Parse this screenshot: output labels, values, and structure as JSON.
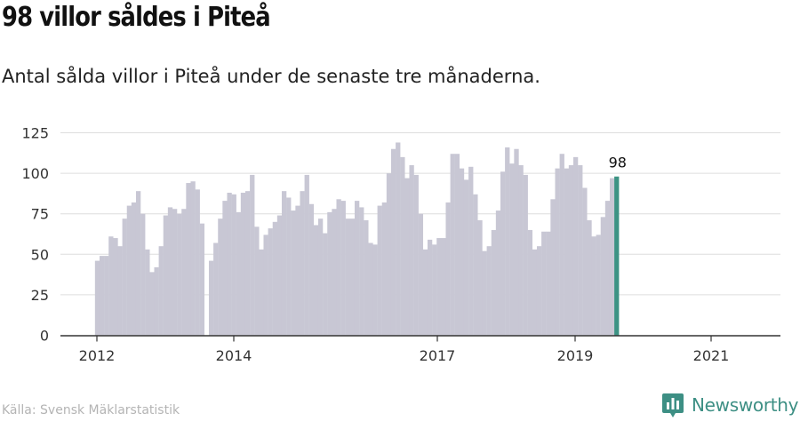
{
  "title": "98 villor såldes i Piteå",
  "subtitle": "Antal sålda villor i Piteå under de senaste tre månaderna.",
  "source": "Källa: Svensk Mäklarstatistik",
  "brand": "Newsworthy",
  "colors": {
    "bar": "#c8c7d4",
    "highlight": "#3d9384",
    "grid": "#dddddd",
    "axis": "#333333",
    "brand": "#3d8f84"
  },
  "icons": {
    "logo": "newsworthy-chart-icon"
  },
  "chart_data": {
    "type": "bar",
    "title": "98 villor såldes i Piteå",
    "xlabel": "",
    "ylabel": "",
    "ylim": [
      0,
      130
    ],
    "yticks": [
      0,
      25,
      50,
      75,
      100,
      125
    ],
    "xticks": [
      "2012",
      "2014",
      "2017",
      "2019",
      "2021"
    ],
    "grid": true,
    "highlight_label": "98",
    "values": [
      46,
      49,
      49,
      61,
      60,
      55,
      72,
      80,
      82,
      89,
      75,
      53,
      39,
      42,
      55,
      74,
      79,
      78,
      75,
      78,
      94,
      95,
      90,
      69,
      null,
      46,
      57,
      72,
      83,
      88,
      87,
      76,
      88,
      89,
      99,
      67,
      53,
      62,
      66,
      70,
      74,
      89,
      85,
      77,
      80,
      89,
      99,
      81,
      68,
      72,
      63,
      76,
      78,
      84,
      83,
      72,
      72,
      83,
      79,
      71,
      57,
      56,
      80,
      82,
      100,
      115,
      119,
      110,
      97,
      105,
      99,
      75,
      53,
      59,
      56,
      60,
      60,
      82,
      112,
      112,
      103,
      96,
      104,
      87,
      71,
      52,
      55,
      65,
      77,
      101,
      116,
      106,
      115,
      105,
      99,
      65,
      53,
      55,
      64,
      64,
      84,
      103,
      112,
      103,
      105,
      110,
      105,
      91,
      71,
      61,
      62,
      73,
      83,
      97,
      98
    ]
  }
}
